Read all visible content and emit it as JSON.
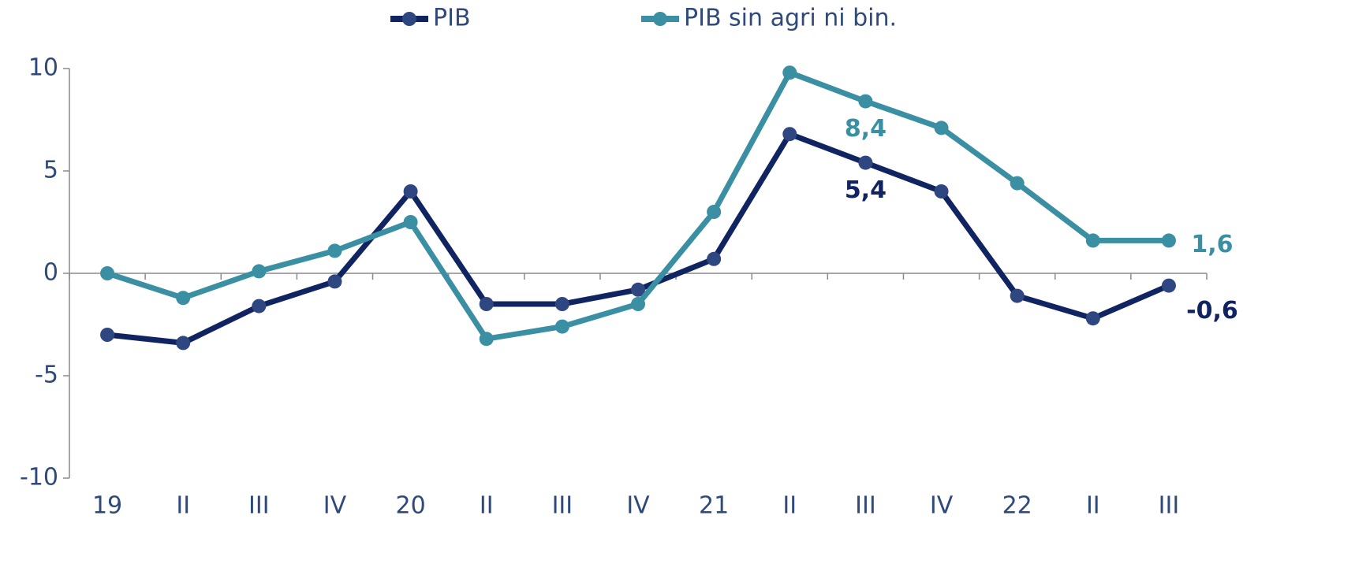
{
  "chart_data": {
    "type": "line",
    "categories": [
      "19",
      "II",
      "III",
      "IV",
      "20",
      "II",
      "III",
      "IV",
      "21",
      "II",
      "III",
      "IV",
      "22",
      "II",
      "III"
    ],
    "series": [
      {
        "name": "PIB",
        "color": "#0f2461",
        "marker_color": "#2e4780",
        "values": [
          -3.0,
          -3.4,
          -1.6,
          -0.4,
          4.0,
          -1.5,
          -1.5,
          -0.8,
          0.7,
          6.8,
          5.4,
          4.0,
          -1.1,
          -2.2,
          -0.6
        ],
        "value_labels": [
          null,
          null,
          null,
          null,
          null,
          null,
          null,
          null,
          null,
          null,
          "5,4",
          null,
          null,
          null,
          "-0,6"
        ]
      },
      {
        "name": "PIB sin agri ni bin.",
        "color": "#3a8fa3",
        "marker_color": "#3a8fa3",
        "values": [
          0.0,
          -1.2,
          0.1,
          1.1,
          2.5,
          -3.2,
          -2.6,
          -1.5,
          3.0,
          9.8,
          8.4,
          7.1,
          4.4,
          1.6,
          1.6
        ],
        "value_labels": [
          null,
          null,
          null,
          null,
          null,
          null,
          null,
          null,
          null,
          null,
          "8,4",
          null,
          null,
          null,
          "1,6"
        ]
      }
    ],
    "ylim": [
      -10,
      10
    ],
    "yticks": [
      -10,
      -5,
      0,
      5,
      10
    ],
    "legend": "top"
  }
}
